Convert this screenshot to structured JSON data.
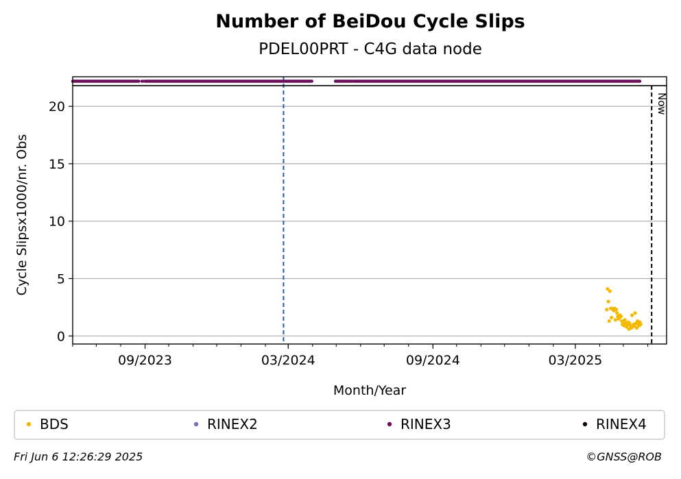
{
  "chart_data": {
    "type": "scatter",
    "title": "Number of BeiDou Cycle Slips",
    "subtitle": "PDEL00PRT - C4G data node",
    "xlabel": "Month/Year",
    "ylabel": "Cycle Slipsx1000/nr. Obs",
    "x_ticks": [
      "09/2023",
      "03/2024",
      "09/2024",
      "03/2025"
    ],
    "x_range": [
      "2023-06-01",
      "2025-06-25"
    ],
    "y_ticks": [
      0,
      5,
      10,
      15,
      20
    ],
    "ylim": [
      -0.7,
      21.8
    ],
    "grid": "horizontal",
    "now_label": "Now",
    "now_date": "2025-06-06",
    "reference_line_date": "2024-02-24",
    "series": [
      {
        "name": "BDS",
        "color": "#f5b800",
        "points": [
          [
            "2025-04-10",
            2.3
          ],
          [
            "2025-04-11",
            4.1
          ],
          [
            "2025-04-12",
            3.0
          ],
          [
            "2025-04-13",
            1.3
          ],
          [
            "2025-04-14",
            3.9
          ],
          [
            "2025-04-15",
            2.4
          ],
          [
            "2025-04-16",
            1.6
          ],
          [
            "2025-04-17",
            2.4
          ],
          [
            "2025-04-18",
            2.3
          ],
          [
            "2025-04-19",
            2.2
          ],
          [
            "2025-04-20",
            2.4
          ],
          [
            "2025-04-21",
            1.4
          ],
          [
            "2025-04-22",
            2.3
          ],
          [
            "2025-04-23",
            2.0
          ],
          [
            "2025-04-24",
            1.7
          ],
          [
            "2025-04-25",
            1.5
          ],
          [
            "2025-04-26",
            1.6
          ],
          [
            "2025-04-27",
            1.8
          ],
          [
            "2025-04-28",
            1.7
          ],
          [
            "2025-04-29",
            1.3
          ],
          [
            "2025-04-30",
            1.0
          ],
          [
            "2025-05-01",
            1.2
          ],
          [
            "2025-05-02",
            0.9
          ],
          [
            "2025-05-03",
            1.4
          ],
          [
            "2025-05-04",
            1.1
          ],
          [
            "2025-05-05",
            0.8
          ],
          [
            "2025-05-06",
            1.0
          ],
          [
            "2025-05-07",
            1.2
          ],
          [
            "2025-05-08",
            0.6
          ],
          [
            "2025-05-09",
            1.1
          ],
          [
            "2025-05-10",
            0.9
          ],
          [
            "2025-05-11",
            0.7
          ],
          [
            "2025-05-12",
            1.8
          ],
          [
            "2025-05-13",
            0.8
          ],
          [
            "2025-05-14",
            1.0
          ],
          [
            "2025-05-15",
            0.9
          ],
          [
            "2025-05-16",
            2.0
          ],
          [
            "2025-05-17",
            1.1
          ],
          [
            "2025-05-18",
            0.7
          ],
          [
            "2025-05-19",
            1.3
          ],
          [
            "2025-05-20",
            1.0
          ],
          [
            "2025-05-21",
            0.9
          ],
          [
            "2025-05-22",
            1.2
          ],
          [
            "2025-05-23",
            1.0
          ]
        ]
      },
      {
        "name": "RINEX3",
        "color": "#6a0f5a",
        "availability_ranges": [
          [
            "2023-06-01",
            "2023-08-24"
          ],
          [
            "2023-08-28",
            "2023-08-29"
          ],
          [
            "2023-09-01",
            "2024-03-31"
          ],
          [
            "2024-04-30",
            "2024-05-20"
          ],
          [
            "2024-05-22",
            "2025-05-22"
          ]
        ]
      }
    ],
    "legend": {
      "placement": "bottom",
      "entries": [
        {
          "label": "BDS",
          "color": "#f5b800"
        },
        {
          "label": "RINEX2",
          "color": "#7b6fb5"
        },
        {
          "label": "RINEX3",
          "color": "#6a0f5a"
        },
        {
          "label": "RINEX4",
          "color": "#1a0018"
        }
      ]
    }
  },
  "footer": {
    "timestamp": "Fri Jun  6 12:26:29 2025",
    "copyright": "©GNSS@ROB"
  }
}
